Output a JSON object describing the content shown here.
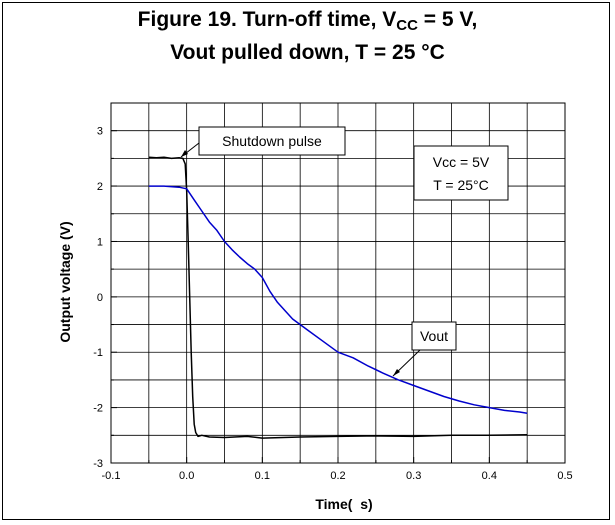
{
  "chart_data": {
    "type": "line",
    "title_line1_main": "Figure 19. Turn-off time, V",
    "title_line1_sub": "CC",
    "title_line1_end": " = 5 V,",
    "title_line2": "Vout pulled down, T = 25 °C",
    "xlabel": "Time(  s)",
    "ylabel": "Output voltage (V)",
    "xlim": [
      -0.1,
      0.5
    ],
    "ylim": [
      -3,
      3.5
    ],
    "xticks": [
      -0.1,
      0.0,
      0.1,
      0.2,
      0.3,
      0.4,
      0.5
    ],
    "xtick_labels": [
      "-0.1",
      "0.0",
      "0.1",
      "0.2",
      "0.3",
      "0.4",
      "0.5"
    ],
    "yticks": [
      -3,
      -2,
      -1,
      0,
      1,
      2,
      3
    ],
    "ytick_labels": [
      "-3",
      "-2",
      "-1",
      "0",
      "1",
      "2",
      "3"
    ],
    "grid": true,
    "series": [
      {
        "name": "Shutdown pulse",
        "color": "#000000",
        "x": [
          -0.05,
          -0.04,
          -0.03,
          -0.02,
          -0.01,
          -0.005,
          -0.002,
          0.0,
          0.002,
          0.004,
          0.006,
          0.008,
          0.01,
          0.012,
          0.015,
          0.02,
          0.03,
          0.05,
          0.08,
          0.1,
          0.15,
          0.2,
          0.25,
          0.3,
          0.35,
          0.4,
          0.45
        ],
        "y": [
          2.52,
          2.51,
          2.52,
          2.5,
          2.51,
          2.5,
          2.4,
          1.9,
          1.0,
          0.0,
          -1.0,
          -1.8,
          -2.3,
          -2.45,
          -2.52,
          -2.5,
          -2.53,
          -2.54,
          -2.52,
          -2.55,
          -2.53,
          -2.52,
          -2.51,
          -2.52,
          -2.5,
          -2.5,
          -2.49
        ]
      },
      {
        "name": "Vout",
        "color": "#0000cc",
        "x": [
          -0.05,
          -0.03,
          -0.01,
          0.0,
          0.01,
          0.02,
          0.03,
          0.04,
          0.05,
          0.06,
          0.07,
          0.08,
          0.09,
          0.1,
          0.11,
          0.12,
          0.14,
          0.16,
          0.18,
          0.2,
          0.22,
          0.24,
          0.26,
          0.28,
          0.3,
          0.32,
          0.34,
          0.36,
          0.38,
          0.4,
          0.42,
          0.44,
          0.45
        ],
        "y": [
          2.0,
          2.0,
          1.98,
          1.95,
          1.75,
          1.55,
          1.35,
          1.2,
          1.0,
          0.85,
          0.72,
          0.6,
          0.5,
          0.35,
          0.1,
          -0.1,
          -0.4,
          -0.6,
          -0.8,
          -1.0,
          -1.1,
          -1.25,
          -1.38,
          -1.5,
          -1.6,
          -1.7,
          -1.8,
          -1.88,
          -1.95,
          -2.0,
          -2.05,
          -2.08,
          -2.1
        ]
      }
    ],
    "annotations": {
      "shutdown_label": "Shutdown pulse",
      "vout_label": "Vout",
      "legend_line1": "Vcc = 5V",
      "legend_line2": "T = 25°C"
    }
  }
}
